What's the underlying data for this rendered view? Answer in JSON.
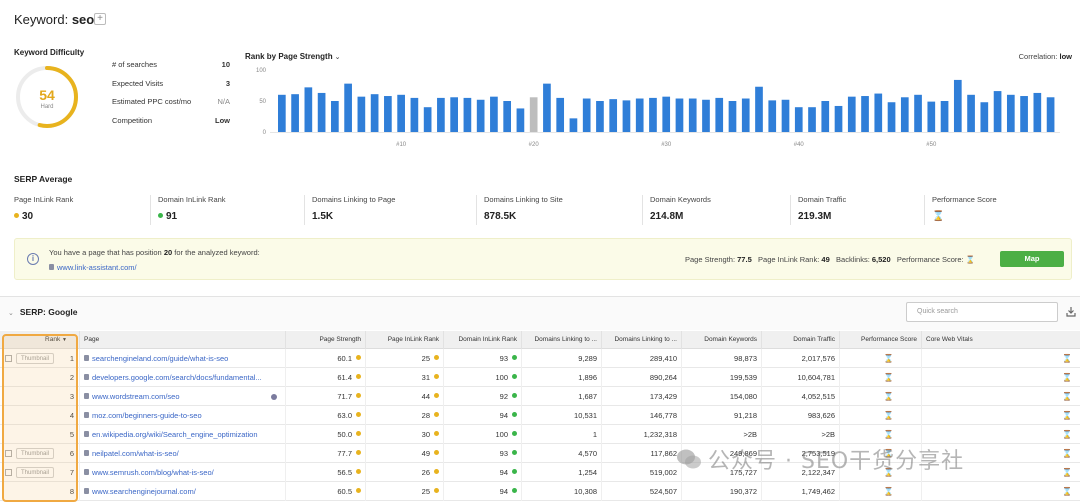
{
  "header": {
    "keyword_label": "Keyword:",
    "keyword": "seo",
    "add_symbol": "+"
  },
  "difficulty": {
    "title": "Keyword Difficulty",
    "score": "54",
    "score_value": 54,
    "level": "Hard",
    "color": "#e8b31e"
  },
  "stats": [
    {
      "label": "# of searches",
      "value": "10"
    },
    {
      "label": "Expected Visits",
      "value": "3"
    },
    {
      "label": "Estimated PPC cost/mo",
      "value": "N/A"
    },
    {
      "label": "Competition",
      "value": "Low"
    }
  ],
  "chart_data": {
    "type": "bar",
    "title": "Rank by Page Strength",
    "correlation_label": "Correlation:",
    "correlation_value": "low",
    "ylim": [
      0,
      100
    ],
    "y_ticks": [
      "100",
      "50",
      "0"
    ],
    "x_ticks": [
      {
        "label": "#10",
        "index": 10
      },
      {
        "label": "#20",
        "index": 20
      },
      {
        "label": "#30",
        "index": 30
      },
      {
        "label": "#40",
        "index": 40
      },
      {
        "label": "#50",
        "index": 50
      }
    ],
    "highlight_index": 20,
    "bar_color": "#2f7ed8",
    "highlight_color": "#bdbdbd",
    "values": [
      60,
      61,
      72,
      63,
      50,
      78,
      57,
      61,
      58,
      60,
      55,
      40,
      55,
      56,
      55,
      52,
      57,
      50,
      38,
      56,
      78,
      55,
      22,
      54,
      50,
      53,
      51,
      54,
      55,
      57,
      54,
      54,
      52,
      55,
      50,
      54,
      73,
      51,
      52,
      40,
      40,
      50,
      42,
      57,
      58,
      62,
      48,
      56,
      60,
      49,
      50,
      84,
      60,
      48,
      66,
      60,
      58,
      63,
      56
    ]
  },
  "serp_average": {
    "title": "SERP Average",
    "items": [
      {
        "label": "Page InLink Rank",
        "value": "30",
        "dot": "#e8b31e"
      },
      {
        "label": "Domain InLink Rank",
        "value": "91",
        "dot": "#3ab54a"
      },
      {
        "label": "Domains Linking to Page",
        "value": "1.5K"
      },
      {
        "label": "Domains Linking to Site",
        "value": "878.5K"
      },
      {
        "label": "Domain Keywords",
        "value": "214.8M"
      },
      {
        "label": "Domain Traffic",
        "value": "219.3M"
      },
      {
        "label": "Performance Score",
        "value": "⌛"
      }
    ]
  },
  "banner": {
    "text_before": "You have a page that has position ",
    "position": "20",
    "text_after": " for the analyzed keyword:",
    "link": "www.link-assistant.com/",
    "page_strength_label": "Page Strength:",
    "page_strength": "77.5",
    "inlink_label": "Page InLink Rank:",
    "inlink": "49",
    "backlinks_label": "Backlinks:",
    "backlinks": "6,520",
    "perf_label": "Performance Score:",
    "perf": "⌛",
    "map_button": "Map"
  },
  "serp": {
    "title": "SERP: Google",
    "search_placeholder": "Quick search",
    "columns": [
      "Rank",
      "Page",
      "Page Strength",
      "Page InLink Rank",
      "Domain InLink Rank",
      "Domains Linking to ...",
      "Domains Linking to ...",
      "Domain Keywords",
      "Domain Traffic",
      "Performance Score",
      "Core Web Vitals"
    ],
    "thumbnail_label": "Thumbnail",
    "rows": [
      {
        "rank": "1",
        "page": "searchengineland.com/guide/what-is-seo",
        "strength": "60.1",
        "inlink": "25",
        "dinlink": "93",
        "dlp": "9,289",
        "dls": "289,410",
        "dkw": "98,873",
        "dtraffic": "2,017,576",
        "thumb": true
      },
      {
        "rank": "2",
        "page": "developers.google.com/search/docs/fundamental...",
        "strength": "61.4",
        "inlink": "31",
        "dinlink": "100",
        "dlp": "1,896",
        "dls": "890,264",
        "dkw": "199,539",
        "dtraffic": "10,604,781",
        "thumb": false
      },
      {
        "rank": "3",
        "page": "www.wordstream.com/seo",
        "strength": "71.7",
        "inlink": "44",
        "dinlink": "92",
        "dlp": "1,687",
        "dls": "173,429",
        "dkw": "154,080",
        "dtraffic": "4,052,515",
        "thumb": false
      },
      {
        "rank": "4",
        "page": "moz.com/beginners-guide-to-seo",
        "strength": "63.0",
        "inlink": "28",
        "dinlink": "94",
        "dlp": "10,531",
        "dls": "146,778",
        "dkw": "91,218",
        "dtraffic": "983,626",
        "thumb": false
      },
      {
        "rank": "5",
        "page": "en.wikipedia.org/wiki/Search_engine_optimization",
        "strength": "50.0",
        "inlink": "30",
        "dinlink": "100",
        "dlp": "1",
        "dls": "1,232,318",
        "dkw": ">2B",
        "dtraffic": ">2B",
        "thumb": false
      },
      {
        "rank": "6",
        "page": "neilpatel.com/what-is-seo/",
        "strength": "77.7",
        "inlink": "49",
        "dinlink": "93",
        "dlp": "4,570",
        "dls": "117,862",
        "dkw": "249,869",
        "dtraffic": "2,753,519",
        "thumb": true
      },
      {
        "rank": "7",
        "page": "www.semrush.com/blog/what-is-seo/",
        "strength": "56.5",
        "inlink": "26",
        "dinlink": "94",
        "dlp": "1,254",
        "dls": "519,002",
        "dkw": "175,727",
        "dtraffic": "2,122,347",
        "thumb": true
      },
      {
        "rank": "8",
        "page": "www.searchenginejournal.com/",
        "strength": "60.5",
        "inlink": "25",
        "dinlink": "94",
        "dlp": "10,308",
        "dls": "524,507",
        "dkw": "190,372",
        "dtraffic": "1,749,462",
        "thumb": false
      }
    ]
  },
  "watermark": "公众号 · SEO干货分享社"
}
